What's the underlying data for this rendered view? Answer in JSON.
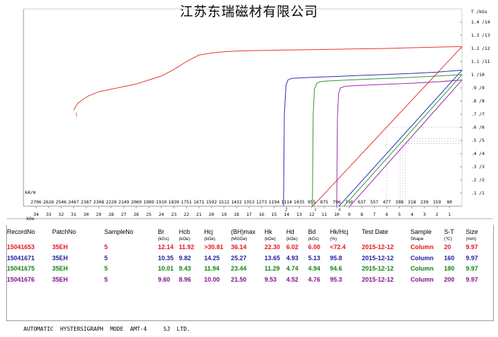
{
  "title": "江苏东瑞磁材有限公司",
  "chart_data": {
    "type": "line",
    "right_axis": {
      "unit_label": "T /kGs",
      "ticks": [
        ".1 /1",
        ".2 /2",
        ".3 /3",
        ".4 /4",
        ".5 /5",
        ".6 /6",
        ".7 /7",
        ".8 /8",
        ".9 /9",
        "1 /10",
        "1.1 /11",
        "1.2 /12",
        "1.3 /13",
        "1.4 /14"
      ],
      "range_kgs": [
        0,
        15
      ]
    },
    "x_axis_top_unit": "kA/m",
    "x_axis_top_ticks": [
      "2706",
      "2626",
      "2546",
      "2467",
      "2387",
      "2308",
      "2228",
      "2149",
      "2069",
      "1989",
      "1910",
      "1830",
      "1751",
      "1671",
      "1592",
      "1512",
      "1432",
      "1353",
      "1273",
      "1194",
      "1114",
      "1035",
      "955",
      "875",
      "796",
      "716",
      "637",
      "557",
      "477",
      "398",
      "318",
      "239",
      "159",
      "80"
    ],
    "x_axis_bottom_unit": "kOe",
    "x_axis_bottom_ticks": [
      "34",
      "33",
      "32",
      "31",
      "30",
      "29",
      "28",
      "27",
      "26",
      "25",
      "24",
      "23",
      "22",
      "21",
      "20",
      "19",
      "18",
      "17",
      "16",
      "15",
      "14",
      "13",
      "12",
      "11",
      "10",
      "9",
      "8",
      "7",
      "6",
      "5",
      "4",
      "3",
      "2",
      "1"
    ],
    "x_range_koe": [
      35,
      0
    ],
    "series": [
      {
        "name": "1",
        "color": "#e8322a",
        "x": [
          31.0,
          30.7,
          30.3,
          29.8,
          29.0,
          28.0,
          27.0,
          26.0,
          25.0,
          24.0,
          23.0,
          22.0,
          21.0,
          20.0,
          19.0,
          18.0,
          16.0,
          14.0,
          12.0,
          10.0,
          8.0,
          6.0,
          4.0,
          2.0,
          0.0
        ],
        "y": [
          7.3,
          7.8,
          8.1,
          8.4,
          8.7,
          8.9,
          9.1,
          9.3,
          9.6,
          9.9,
          10.4,
          11.0,
          11.5,
          11.65,
          11.75,
          11.8,
          11.85,
          11.88,
          11.91,
          11.94,
          11.97,
          12.0,
          12.05,
          12.1,
          12.14
        ]
      },
      {
        "name": "2",
        "color": "#2a2ab8",
        "x": [
          14.25,
          14.22,
          14.18,
          14.05,
          13.9,
          13.6,
          13.0,
          12.0,
          10.0,
          8.0,
          6.0,
          4.0,
          2.0,
          0.0
        ],
        "y": [
          0.0,
          3.0,
          7.0,
          9.2,
          9.6,
          9.72,
          9.76,
          9.8,
          9.87,
          9.95,
          10.02,
          10.1,
          10.2,
          10.35
        ]
      },
      {
        "name": "3",
        "color": "#2a9a2a",
        "x": [
          11.94,
          11.92,
          11.88,
          11.78,
          11.6,
          11.3,
          10.8,
          10.0,
          8.0,
          6.0,
          4.0,
          2.0,
          0.0
        ],
        "y": [
          0.0,
          3.0,
          7.0,
          8.9,
          9.35,
          9.48,
          9.52,
          9.56,
          9.64,
          9.72,
          9.8,
          9.9,
          10.01
        ]
      },
      {
        "name": "4",
        "color": "#9a2aa8",
        "x": [
          10.0,
          9.98,
          9.94,
          9.85,
          9.7,
          9.4,
          9.0,
          8.0,
          6.0,
          4.0,
          2.0,
          0.0
        ],
        "y": [
          0.0,
          3.0,
          6.8,
          8.6,
          9.0,
          9.1,
          9.15,
          9.2,
          9.28,
          9.36,
          9.46,
          9.6
        ]
      }
    ],
    "recoil_lines": [
      {
        "color": "#e8322a",
        "x": [
          11.92,
          0.0
        ],
        "y": [
          0.0,
          12.14
        ]
      },
      {
        "color": "#2a2ab8",
        "x": [
          9.82,
          0.0
        ],
        "y": [
          0.0,
          10.35
        ]
      },
      {
        "color": "#2a9a2a",
        "x": [
          9.43,
          0.0
        ],
        "y": [
          0.0,
          10.01
        ]
      },
      {
        "color": "#9a2aa8",
        "x": [
          8.96,
          0.0
        ],
        "y": [
          0.0,
          9.6
        ]
      }
    ]
  },
  "table": {
    "headers": [
      "RecordNo",
      "PatchNo",
      "SampleNo",
      "Br",
      "Hcb",
      "Hcj",
      "(BH)max",
      "Hk",
      "Hd",
      "Bd",
      "Hk/Hcj",
      "Test Date",
      "Sample",
      "S-T",
      "Size"
    ],
    "subheaders": [
      "",
      "",
      "",
      "(kGs)",
      "(kOe)",
      "(kOe)",
      "(MGOe)",
      "(kOe)",
      "(kOe)",
      "(kGs)",
      "(%)",
      "",
      "Shape",
      "(℃)",
      "(mm)"
    ],
    "rows": [
      {
        "color": "#e8141e",
        "cells": [
          "15041653",
          "35EH",
          "5",
          "12.14",
          "11.92",
          ">30.81",
          "36.14",
          "22.30",
          "6.02",
          "6.00",
          "<72.4",
          "2015-12-12",
          "Column",
          "20",
          "9.97"
        ]
      },
      {
        "color": "#1e1ea0",
        "cells": [
          "15041671",
          "35EH",
          "5",
          "10.35",
          "9.82",
          "14.25",
          "25.27",
          "13.65",
          "4.93",
          "5.13",
          "95.8",
          "2015-12-12",
          "Column",
          "160",
          "9.97"
        ]
      },
      {
        "color": "#148214",
        "cells": [
          "15041675",
          "35EH",
          "5",
          "10.01",
          "9.43",
          "11.94",
          "23.44",
          "11.29",
          "4.74",
          "4.94",
          "94.6",
          "2015-12-12",
          "Column",
          "180",
          "9.97"
        ]
      },
      {
        "color": "#82148c",
        "cells": [
          "15041676",
          "35EH",
          "5",
          "9.60",
          "8.96",
          "10.00",
          "21.50",
          "9.53",
          "4.52",
          "4.76",
          "95.3",
          "2015-12-12",
          "Column",
          "200",
          "9.97"
        ]
      }
    ]
  },
  "footer": "AUTOMATIC  HYSTERSIGRAPH  MODE  AMT-4     SJ  LTD."
}
